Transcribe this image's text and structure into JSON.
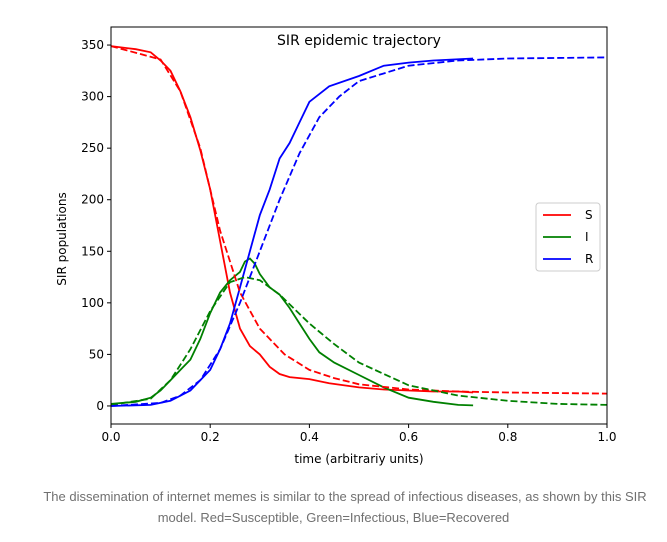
{
  "chart_data": {
    "type": "line",
    "title": "SIR epidemic trajectory",
    "xlabel": "time (arbitrariy units)",
    "ylabel": "SIR populations",
    "xlim": [
      0,
      1.0
    ],
    "ylim": [
      -17.5,
      367.5
    ],
    "xticks": [
      "0.0",
      "0.2",
      "0.4",
      "0.6",
      "0.8",
      "1.0"
    ],
    "yticks": [
      "0",
      "50",
      "100",
      "150",
      "200",
      "250",
      "300",
      "350"
    ],
    "grid": false,
    "legend_placement": "center-right",
    "series": [
      {
        "name": "S",
        "color": "#ff0000",
        "style": "solid",
        "x": [
          0,
          0.05,
          0.08,
          0.1,
          0.12,
          0.14,
          0.16,
          0.18,
          0.2,
          0.22,
          0.24,
          0.26,
          0.28,
          0.3,
          0.32,
          0.34,
          0.36,
          0.4,
          0.44,
          0.5,
          0.55,
          0.6,
          0.65,
          0.7,
          0.73
        ],
        "y": [
          349,
          346,
          343,
          335,
          325,
          305,
          280,
          248,
          210,
          160,
          110,
          75,
          58,
          50,
          38,
          31,
          28,
          26,
          22,
          18,
          16,
          15,
          14,
          14,
          13
        ]
      },
      {
        "name": "I",
        "color": "#008000",
        "style": "solid",
        "x": [
          0,
          0.05,
          0.08,
          0.1,
          0.12,
          0.14,
          0.16,
          0.18,
          0.2,
          0.22,
          0.24,
          0.26,
          0.27,
          0.28,
          0.29,
          0.3,
          0.32,
          0.34,
          0.36,
          0.38,
          0.4,
          0.42,
          0.45,
          0.5,
          0.55,
          0.6,
          0.65,
          0.7,
          0.73
        ],
        "y": [
          2,
          4,
          8,
          15,
          25,
          35,
          45,
          65,
          90,
          110,
          122,
          130,
          140,
          143,
          138,
          128,
          115,
          108,
          95,
          80,
          65,
          52,
          42,
          30,
          18,
          8,
          4,
          1,
          0.5
        ]
      },
      {
        "name": "R",
        "color": "#0000ff",
        "style": "solid",
        "x": [
          0,
          0.08,
          0.12,
          0.16,
          0.2,
          0.22,
          0.24,
          0.26,
          0.28,
          0.3,
          0.32,
          0.34,
          0.36,
          0.38,
          0.4,
          0.44,
          0.5,
          0.55,
          0.6,
          0.65,
          0.73
        ],
        "y": [
          0,
          1,
          5,
          15,
          35,
          55,
          80,
          115,
          150,
          185,
          210,
          240,
          255,
          275,
          295,
          310,
          320,
          330,
          333,
          335,
          337
        ]
      },
      {
        "color": "#ff0000",
        "style": "dashed",
        "x": [
          0,
          0.1,
          0.14,
          0.18,
          0.22,
          0.26,
          0.3,
          0.35,
          0.4,
          0.45,
          0.5,
          0.6,
          0.7,
          0.8,
          1.0
        ],
        "y": [
          349,
          336,
          305,
          250,
          170,
          110,
          75,
          50,
          35,
          27,
          21,
          16,
          14,
          13,
          12
        ]
      },
      {
        "color": "#008000",
        "style": "dashed",
        "x": [
          0,
          0.08,
          0.12,
          0.16,
          0.2,
          0.24,
          0.27,
          0.3,
          0.34,
          0.4,
          0.45,
          0.5,
          0.6,
          0.7,
          0.8,
          0.9,
          1.0
        ],
        "y": [
          1,
          7,
          25,
          55,
          92,
          120,
          125,
          122,
          108,
          80,
          60,
          42,
          20,
          10,
          5,
          2,
          1
        ]
      },
      {
        "color": "#0000ff",
        "style": "dashed",
        "x": [
          0,
          0.1,
          0.14,
          0.18,
          0.22,
          0.26,
          0.3,
          0.34,
          0.38,
          0.42,
          0.46,
          0.5,
          0.6,
          0.7,
          0.8,
          1.0
        ],
        "y": [
          0,
          3,
          10,
          25,
          55,
          100,
          150,
          200,
          245,
          280,
          300,
          315,
          330,
          335,
          337,
          338
        ]
      }
    ]
  },
  "caption": {
    "line1": "The dissemination of internet memes is similar to the spread of infectious diseases, as shown by this SIR",
    "line2": "model. Red=Susceptible, Green=Infectious, Blue=Recovered"
  }
}
